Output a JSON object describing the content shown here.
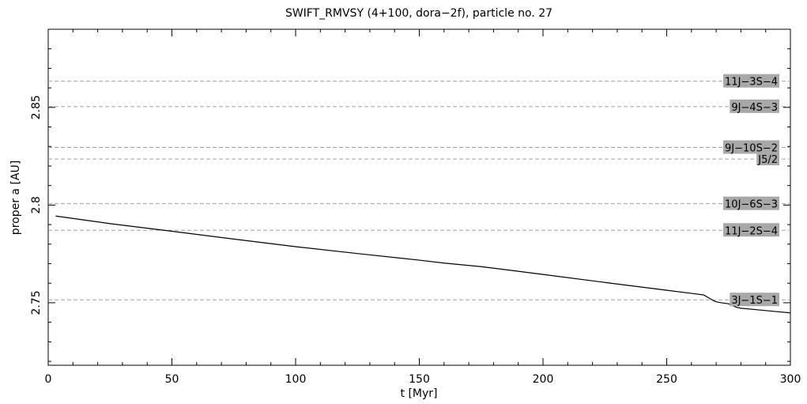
{
  "chart_data": {
    "type": "line",
    "title": "SWIFT_RMVSY (4+100, dora−2f), particle no. 27",
    "xlabel": "t [Myr]",
    "ylabel": "proper a [AU]",
    "xlim": [
      0,
      300
    ],
    "ylim": [
      2.718,
      2.89
    ],
    "x_ticks": [
      0,
      50,
      100,
      150,
      200,
      250,
      300
    ],
    "x_tick_labels": [
      "0",
      "50",
      "100",
      "150",
      "200",
      "250",
      "300"
    ],
    "y_ticks": [
      2.75,
      2.8,
      2.85
    ],
    "y_tick_labels": [
      "2.75",
      "2.8",
      "2.85"
    ],
    "grid": false,
    "resonances": [
      {
        "label": "11J−3S−4",
        "a": 2.8634
      },
      {
        "label": "9J−4S−3",
        "a": 2.8504
      },
      {
        "label": "9J−10S−2",
        "a": 2.8295
      },
      {
        "label": "J5/2",
        "a": 2.8236
      },
      {
        "label": "10J−6S−3",
        "a": 2.8007
      },
      {
        "label": "11J−2S−4",
        "a": 2.7871
      },
      {
        "label": "3J−1S−1",
        "a": 2.7515
      }
    ],
    "series": [
      {
        "x": [
          3,
          25,
          50,
          75,
          100,
          125,
          150,
          160,
          175,
          200,
          225,
          250,
          260,
          265,
          267,
          269,
          270,
          272,
          275,
          278,
          280,
          285,
          290,
          295,
          300
        ],
        "y": [
          2.7944,
          2.7905,
          2.7866,
          2.7826,
          2.7787,
          2.7752,
          2.7718,
          2.7703,
          2.7685,
          2.7645,
          2.7604,
          2.7564,
          2.7548,
          2.754,
          2.7525,
          2.751,
          2.7505,
          2.75,
          2.7495,
          2.7478,
          2.7472,
          2.7466,
          2.746,
          2.7454,
          2.7448
        ]
      }
    ]
  }
}
